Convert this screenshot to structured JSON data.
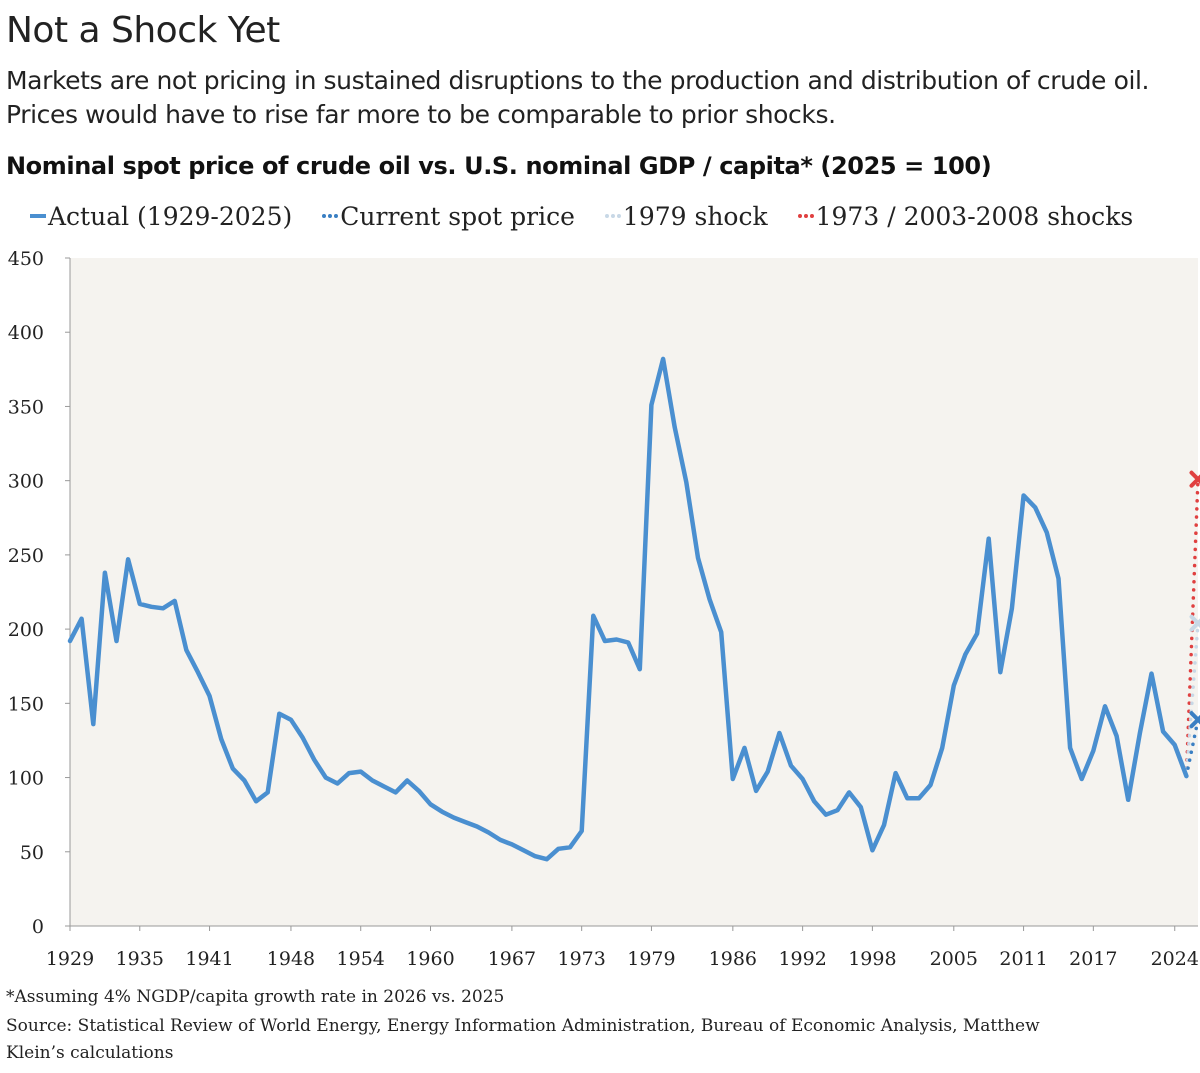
{
  "title": "Not a Shock Yet",
  "subtitle": "Markets are not pricing in sustained disruptions to the production and distribution of crude oil. Prices would have to rise far more to be comparable to prior shocks.",
  "chart_data": {
    "type": "line",
    "title": "Nominal spot price of crude oil vs. U.S. nominal GDP / capita* (2025 = 100)",
    "xlabel": "",
    "ylabel": "",
    "ylim": [
      0,
      450
    ],
    "xlim": [
      1929,
      2026
    ],
    "yticks": [
      "0",
      "50",
      "100",
      "150",
      "200",
      "250",
      "300",
      "350",
      "400",
      "450"
    ],
    "xticks": [
      "1929",
      "1935",
      "1941",
      "1948",
      "1954",
      "1960",
      "1967",
      "1973",
      "1979",
      "1986",
      "1992",
      "1998",
      "2005",
      "2011",
      "2017",
      "2024"
    ],
    "legend": [
      {
        "label": "Actual (1929-2025)",
        "color": "#4a8fd0",
        "style": "solid"
      },
      {
        "label": "Current spot price",
        "color": "#3a7fc3",
        "style": "dotted"
      },
      {
        "label": "1979 shock",
        "color": "#c8d8e6",
        "style": "dotted"
      },
      {
        "label": "1973 / 2003-2008 shocks",
        "color": "#e04040",
        "style": "dotted"
      }
    ],
    "series": [
      {
        "name": "Actual (1929-2025)",
        "color": "#4a8fd0",
        "x": [
          1929,
          1930,
          1931,
          1932,
          1933,
          1934,
          1935,
          1936,
          1937,
          1938,
          1939,
          1940,
          1941,
          1942,
          1943,
          1944,
          1945,
          1946,
          1947,
          1948,
          1949,
          1950,
          1951,
          1952,
          1953,
          1954,
          1955,
          1956,
          1957,
          1958,
          1959,
          1960,
          1961,
          1962,
          1963,
          1964,
          1965,
          1966,
          1967,
          1968,
          1969,
          1970,
          1971,
          1972,
          1973,
          1974,
          1975,
          1976,
          1977,
          1978,
          1979,
          1980,
          1981,
          1982,
          1983,
          1984,
          1985,
          1986,
          1987,
          1988,
          1989,
          1990,
          1991,
          1992,
          1993,
          1994,
          1995,
          1996,
          1997,
          1998,
          1999,
          2000,
          2001,
          2002,
          2003,
          2004,
          2005,
          2006,
          2007,
          2008,
          2009,
          2010,
          2011,
          2012,
          2013,
          2014,
          2015,
          2016,
          2017,
          2018,
          2019,
          2020,
          2021,
          2022,
          2023,
          2024,
          2025
        ],
        "values": [
          192,
          207,
          136,
          238,
          192,
          247,
          217,
          215,
          214,
          219,
          186,
          171,
          155,
          126,
          106,
          98,
          84,
          90,
          143,
          139,
          127,
          112,
          100,
          96,
          103,
          104,
          98,
          94,
          90,
          98,
          91,
          82,
          77,
          73,
          70,
          67,
          63,
          58,
          55,
          51,
          47,
          45,
          52,
          53,
          64,
          209,
          192,
          193,
          191,
          173,
          351,
          382,
          336,
          299,
          248,
          220,
          198,
          99,
          120,
          91,
          104,
          130,
          108,
          99,
          84,
          75,
          78,
          90,
          80,
          51,
          68,
          103,
          86,
          86,
          95,
          120,
          162,
          183,
          197,
          261,
          171,
          214,
          290,
          282,
          265,
          234,
          120,
          99,
          118,
          148,
          128,
          85,
          130,
          170,
          131,
          122,
          101
        ]
      },
      {
        "name": "Current spot price",
        "color": "#3a7fc3",
        "x": [
          2025,
          2026
        ],
        "values": [
          101,
          139
        ]
      },
      {
        "name": "1979 shock",
        "color": "#c8d8e6",
        "x": [
          2025,
          2026
        ],
        "values": [
          101,
          204
        ]
      },
      {
        "name": "1973 / 2003-2008 shocks",
        "color": "#e04040",
        "x": [
          2025,
          2026
        ],
        "values": [
          101,
          301
        ]
      }
    ]
  },
  "footnotes": [
    "*Assuming 4% NGDP/capita growth rate in 2026 vs. 2025",
    "Source: Statistical Review of World Energy, Energy Information Administration, Bureau of Economic Analysis, Matthew",
    "Klein’s calculations"
  ]
}
